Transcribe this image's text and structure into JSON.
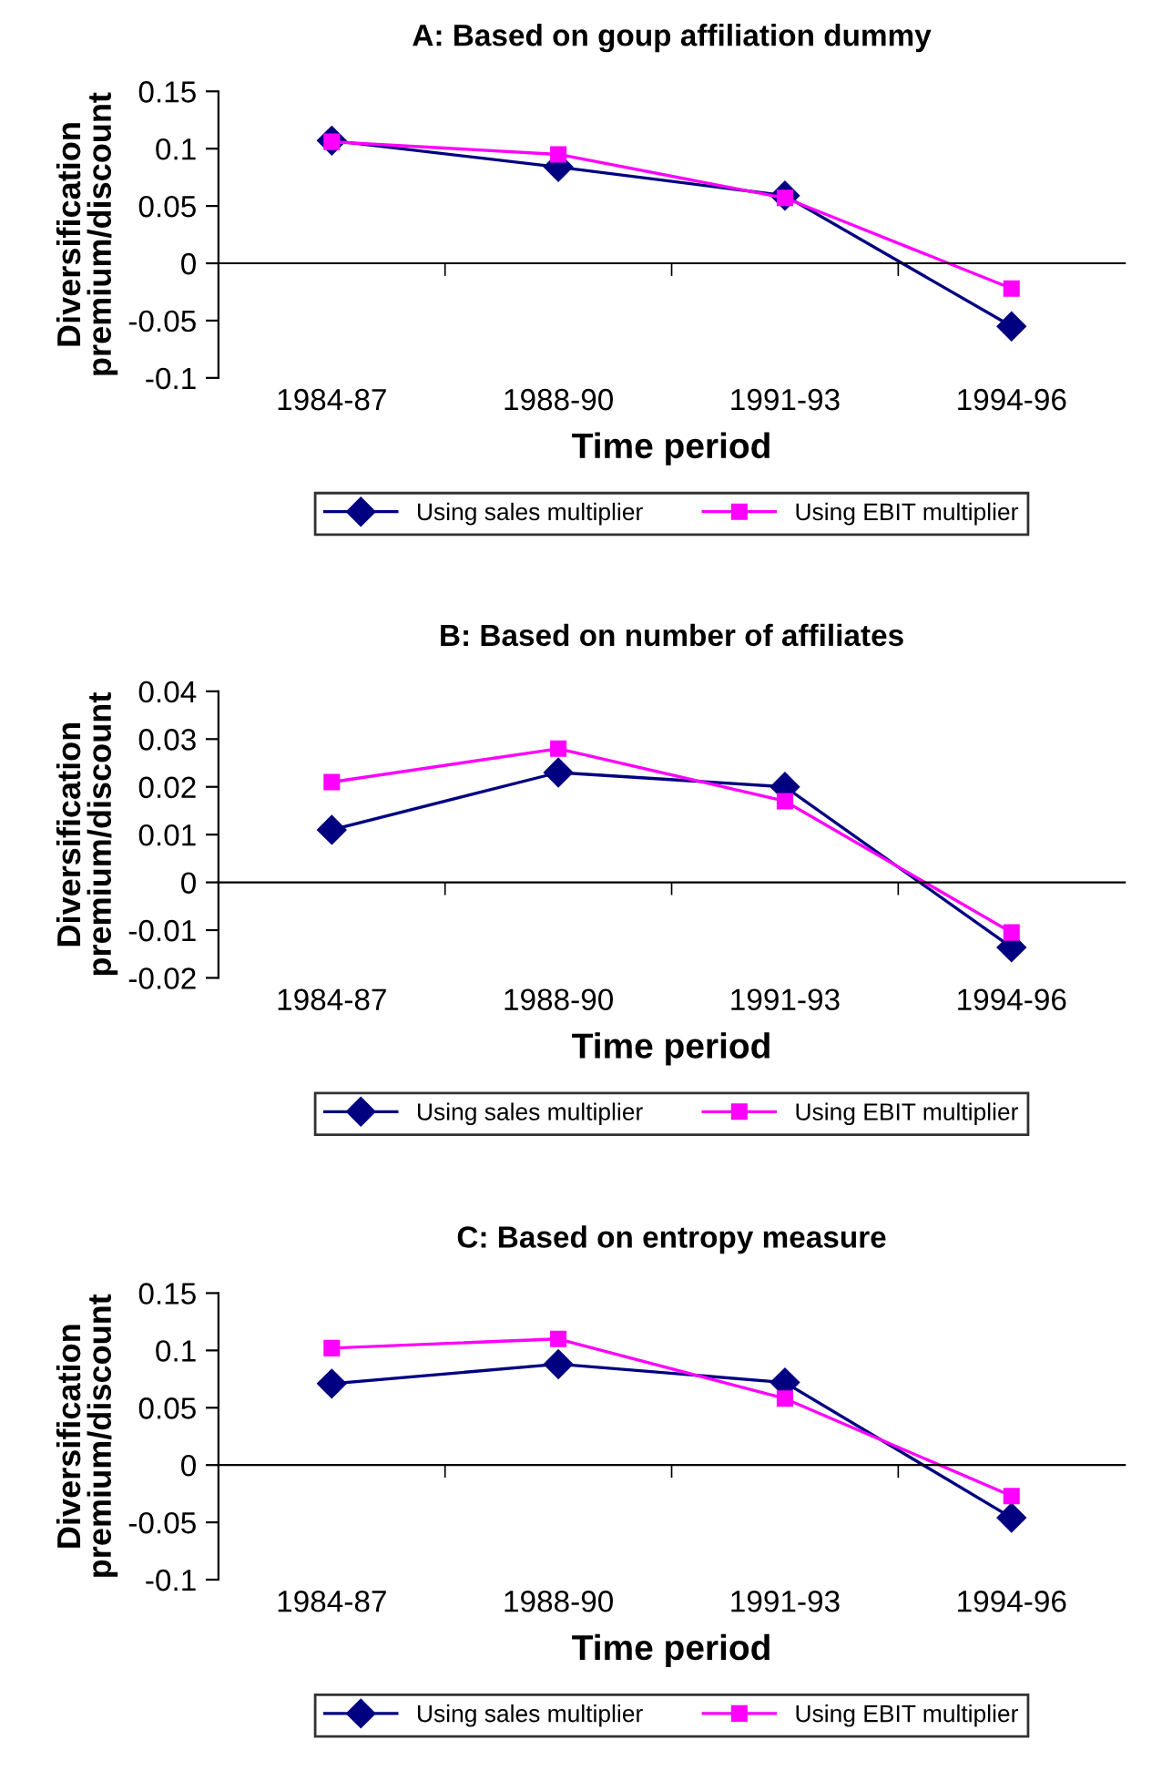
{
  "chart_data": [
    {
      "type": "line",
      "title": "A: Based on goup affiliation dummy",
      "xlabel": "Time period",
      "ylabel": "Diversification\npremium/discount",
      "categories": [
        "1984-87",
        "1988-90",
        "1991-93",
        "1994-96"
      ],
      "series": [
        {
          "name": "Using sales multiplier",
          "color": "#000080",
          "marker": "diamond",
          "values": [
            0.107,
            0.084,
            0.059,
            -0.055
          ]
        },
        {
          "name": "Using EBIT multiplier",
          "color": "#ff00ff",
          "marker": "square",
          "values": [
            0.106,
            0.095,
            0.057,
            -0.022
          ]
        }
      ],
      "ylim": [
        -0.1,
        0.15
      ],
      "yticks": [
        {
          "value": -0.1,
          "label": "-0.1"
        },
        {
          "value": -0.05,
          "label": "-0.05"
        },
        0,
        0.05,
        0.1,
        0.15
      ],
      "legend": "bottom"
    },
    {
      "type": "line",
      "title": "B: Based on number of affiliates",
      "xlabel": "Time period",
      "ylabel": "Diversification\npremium/discount",
      "categories": [
        "1984-87",
        "1988-90",
        "1991-93",
        "1994-96"
      ],
      "series": [
        {
          "name": "Using sales multiplier",
          "color": "#000080",
          "marker": "diamond",
          "values": [
            0.011,
            0.023,
            0.02,
            -0.0136
          ]
        },
        {
          "name": "Using EBIT multiplier",
          "color": "#ff00ff",
          "marker": "square",
          "values": [
            0.021,
            0.028,
            0.017,
            -0.0105
          ]
        }
      ],
      "ylim": [
        -0.02,
        0.04
      ],
      "yticks": [
        {
          "value": -0.02,
          "label": "-0.02"
        },
        {
          "value": -0.01,
          "label": "-0.01"
        },
        0,
        0.01,
        0.02,
        0.03,
        0.04
      ],
      "legend": "bottom"
    },
    {
      "type": "line",
      "title": "C: Based on entropy measure",
      "xlabel": "Time period",
      "ylabel": "Diversification\npremium/discount",
      "categories": [
        "1984-87",
        "1988-90",
        "1991-93",
        "1994-96"
      ],
      "series": [
        {
          "name": "Using sales multiplier",
          "color": "#000080",
          "marker": "diamond",
          "values": [
            0.071,
            0.088,
            0.072,
            -0.046
          ]
        },
        {
          "name": "Using EBIT multiplier",
          "color": "#ff00ff",
          "marker": "square",
          "values": [
            0.102,
            0.11,
            0.058,
            -0.027
          ]
        }
      ],
      "ylim": [
        -0.1,
        0.15
      ],
      "yticks": [
        {
          "value": -0.1,
          "label": "-0.1"
        },
        {
          "value": -0.05,
          "label": "-0.05"
        },
        0,
        0.05,
        0.1,
        0.15
      ],
      "legend": "bottom"
    }
  ]
}
